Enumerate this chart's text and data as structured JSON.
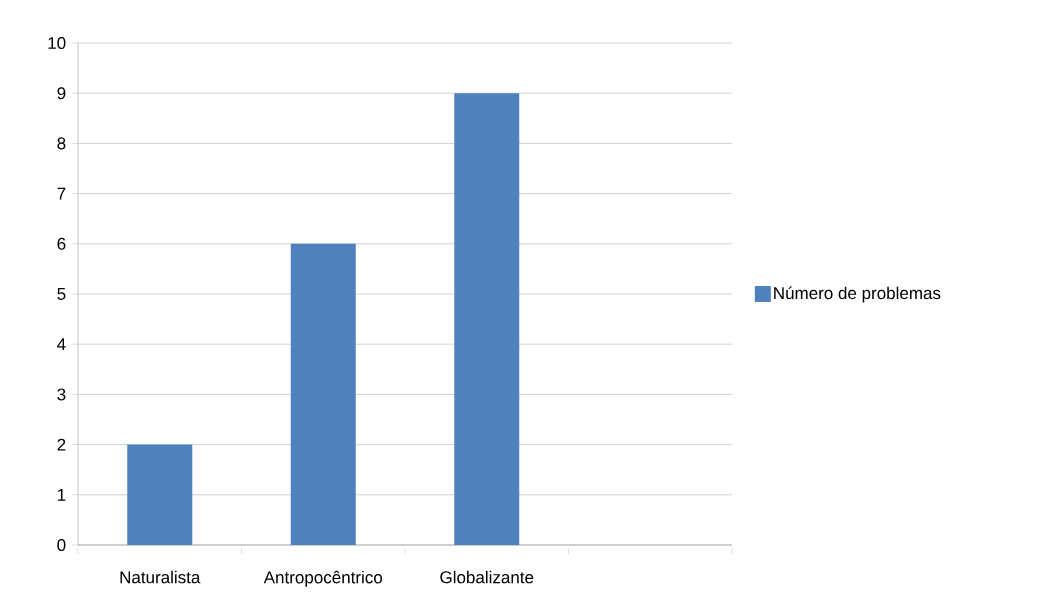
{
  "chart_data": {
    "type": "bar",
    "categories": [
      "Naturalista",
      "Antropocêntrico",
      "Globalizante",
      null
    ],
    "series": [
      {
        "name": "Número de problemas",
        "color": "#4f81bd",
        "values": [
          2,
          6,
          9,
          null
        ]
      }
    ],
    "ylim": [
      0,
      10
    ],
    "yticks": [
      0,
      1,
      2,
      3,
      4,
      5,
      6,
      7,
      8,
      9,
      10
    ],
    "grid": "y",
    "legend": "right"
  }
}
